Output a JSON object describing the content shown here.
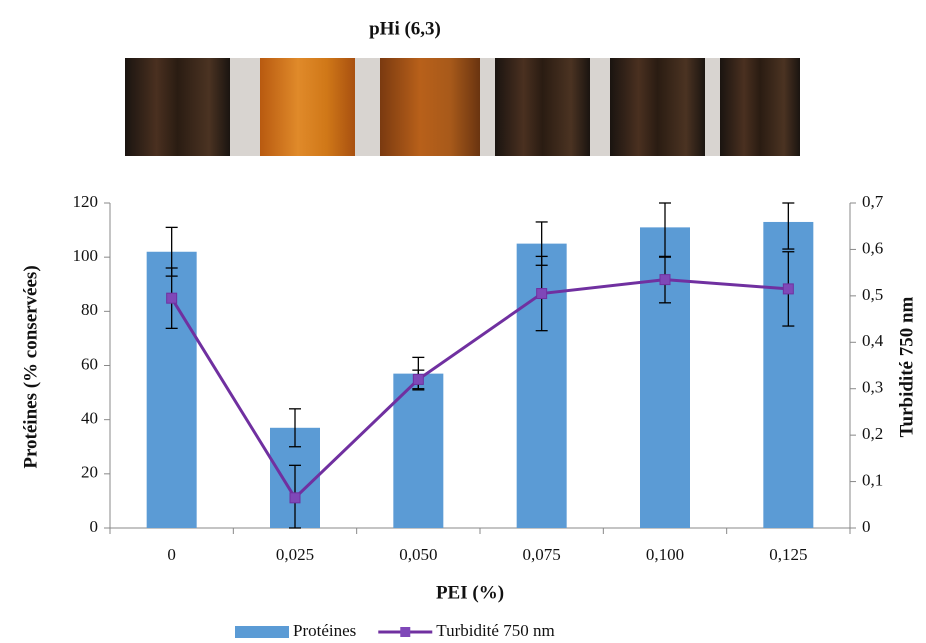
{
  "chart_data": {
    "type": "bar_line",
    "title": "pHi (6,3)",
    "x_label": "PEI  (%)",
    "y_label": "Protéines  (% conservées)",
    "y2_label": "Turbidité  750 nm",
    "categories": [
      "0",
      "0,025",
      "0,050",
      "0,075",
      "0,100",
      "0,125"
    ],
    "series": [
      {
        "name": "Protéines",
        "type": "bar",
        "color": "#5b9bd5",
        "values": [
          102,
          37,
          57,
          105,
          111,
          113
        ],
        "errors": [
          9,
          7,
          6,
          8,
          11,
          10
        ]
      },
      {
        "name": "Turbidité 750 nm",
        "type": "line",
        "axis": "y2",
        "color": "#7030a0",
        "values": [
          0.495,
          0.065,
          0.32,
          0.505,
          0.535,
          0.515
        ],
        "errors": [
          0.065,
          0.07,
          0.02,
          0.08,
          0.05,
          0.08
        ]
      }
    ],
    "ylim": [
      0,
      120
    ],
    "yticks": [
      0,
      20,
      40,
      60,
      80,
      100,
      120
    ],
    "y2lim": [
      0,
      0.7
    ],
    "y2ticks": [
      0,
      {
        "value": 0.1,
        "label": "0,1"
      },
      {
        "value": 0.2,
        "label": "0,2"
      },
      {
        "value": 0.3,
        "label": "0,3"
      },
      {
        "value": 0.4,
        "label": "0,4"
      },
      {
        "value": 0.5,
        "label": "0,5"
      },
      {
        "value": 0.6,
        "label": "0,6"
      },
      {
        "value": 0.7,
        "label": "0,7"
      }
    ],
    "legend": "bottom"
  }
}
